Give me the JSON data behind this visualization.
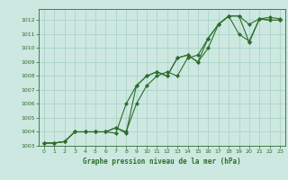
{
  "title": "Graphe pression niveau de la mer (hPa)",
  "bg_color": "#cce8e0",
  "grid_color": "#a8cfc4",
  "line_color": "#2d6e2d",
  "marker_color": "#2d6e2d",
  "xlim": [
    -0.5,
    23.5
  ],
  "ylim": [
    1003,
    1012.8
  ],
  "xticks": [
    0,
    1,
    2,
    3,
    4,
    5,
    6,
    7,
    8,
    9,
    10,
    11,
    12,
    13,
    14,
    15,
    16,
    17,
    18,
    19,
    20,
    21,
    22,
    23
  ],
  "yticks": [
    1003,
    1004,
    1005,
    1006,
    1007,
    1008,
    1009,
    1010,
    1011,
    1012
  ],
  "series1": {
    "x": [
      0,
      1,
      2,
      3,
      4,
      5,
      6,
      7,
      8,
      9,
      10,
      11,
      12,
      13,
      14,
      15,
      16,
      17,
      18,
      19,
      20,
      21,
      22,
      23
    ],
    "y": [
      1003.2,
      1003.2,
      1003.3,
      1004.0,
      1004.0,
      1004.0,
      1004.0,
      1004.3,
      1004.0,
      1006.0,
      1007.3,
      1008.0,
      1008.3,
      1008.0,
      1009.3,
      1009.5,
      1010.7,
      1011.7,
      1012.3,
      1012.3,
      1010.4,
      1012.1,
      1012.0,
      1012.0
    ]
  },
  "series2": {
    "x": [
      0,
      1,
      2,
      3,
      4,
      5,
      6,
      7,
      8,
      9,
      10,
      11,
      12,
      13,
      14,
      15,
      16,
      17,
      18,
      19,
      20,
      21,
      22,
      23
    ],
    "y": [
      1003.2,
      1003.2,
      1003.3,
      1004.0,
      1004.0,
      1004.0,
      1004.0,
      1003.9,
      1006.0,
      1007.3,
      1008.0,
      1008.3,
      1008.0,
      1009.3,
      1009.5,
      1009.0,
      1010.0,
      1011.7,
      1012.3,
      1012.3,
      1011.7,
      1012.1,
      1012.2,
      1012.1
    ]
  },
  "series3": {
    "x": [
      0,
      1,
      2,
      3,
      4,
      5,
      6,
      7,
      8,
      9,
      10,
      11,
      12,
      13,
      14,
      15,
      16,
      17,
      18,
      19,
      20,
      21,
      22,
      23
    ],
    "y": [
      1003.2,
      1003.2,
      1003.3,
      1004.0,
      1004.0,
      1004.0,
      1004.0,
      1004.3,
      1003.9,
      1007.3,
      1008.0,
      1008.3,
      1008.0,
      1009.3,
      1009.5,
      1009.0,
      1010.7,
      1011.7,
      1012.3,
      1011.0,
      1010.5,
      1012.1,
      1012.0,
      1012.0
    ]
  }
}
